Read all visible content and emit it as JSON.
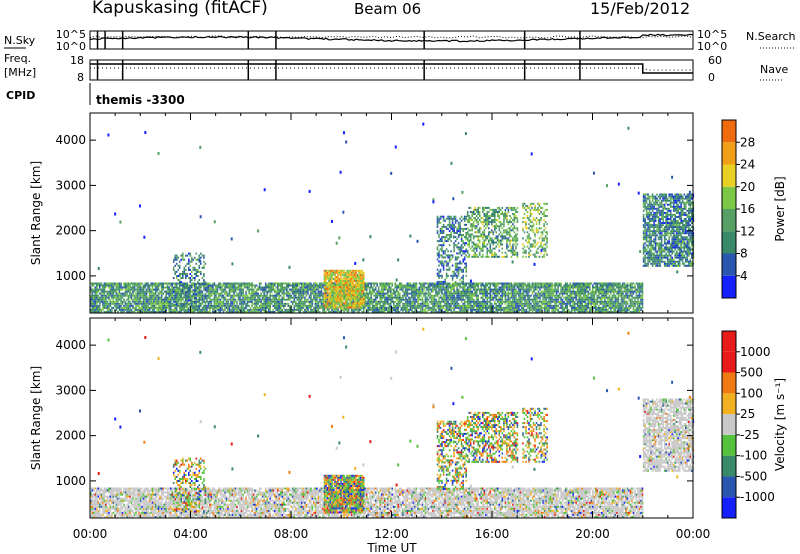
{
  "header": {
    "station": "Kapuskasing (fitACF)",
    "beam": "Beam 06",
    "date": "15/Feb/2012"
  },
  "panels": {
    "nsky_label": "N.Sky",
    "nsky_ticks": [
      "10^5",
      "10^0"
    ],
    "nsearch_ticks": [
      "10^5",
      "10^0"
    ],
    "nsearch_label": "N.Search",
    "freq_label": "Freq.",
    "freq_unit": "[MHz]",
    "freq_ticks": [
      "18",
      "8"
    ],
    "nave_ticks": [
      "60",
      "0"
    ],
    "nave_label": "Nave",
    "cpid_label": "CPID",
    "cpid_value": "themis -3300"
  },
  "axes": {
    "ylabel": "Slant Range [km]",
    "xlabel": "Time UT",
    "y_ticks": [
      "1000",
      "2000",
      "3000",
      "4000"
    ],
    "x_ticks": [
      "00:00",
      "04:00",
      "08:00",
      "12:00",
      "16:00",
      "20:00",
      "00:00"
    ]
  },
  "colorbars": {
    "power": {
      "label": "Power [dB]",
      "ticks": [
        "4",
        "8",
        "12",
        "16",
        "20",
        "24",
        "28"
      ]
    },
    "velocity": {
      "label": "Velocity [m s⁻¹]",
      "ticks": [
        "1000",
        "500",
        "100",
        "25",
        "-25",
        "-100",
        "-500",
        "-1000"
      ]
    }
  },
  "colors": {
    "power_scale": [
      "#1420ff",
      "#2a56b0",
      "#3a8a6a",
      "#56a066",
      "#7cc846",
      "#e8d024",
      "#f0a016",
      "#f06a0e",
      "#e81a1a"
    ],
    "velocity_scale": [
      "#1420ff",
      "#2a56b0",
      "#3a8a6a",
      "#56c23c",
      "#c8c8c8",
      "#f0b020",
      "#f07a12",
      "#e81a1a"
    ],
    "ground_scatter": "#c8c8c8"
  },
  "chart_data": {
    "type": "heatmap",
    "x_range_hours": [
      0,
      24
    ],
    "y_range_km": [
      180,
      4600
    ],
    "panels": [
      "power",
      "velocity"
    ],
    "scatter_regions": [
      {
        "t0": 0.0,
        "t1": 22.0,
        "r0": 180,
        "r1": 850,
        "density": 0.85,
        "power_mean": 10,
        "kind": "near"
      },
      {
        "t0": 9.3,
        "t1": 10.9,
        "r0": 280,
        "r1": 1100,
        "density": 0.9,
        "power_mean": 20,
        "kind": "bright"
      },
      {
        "t0": 3.3,
        "t1": 4.6,
        "r0": 300,
        "r1": 1500,
        "density": 0.35,
        "power_mean": 8,
        "kind": "patch"
      },
      {
        "t0": 13.8,
        "t1": 15.0,
        "r0": 800,
        "r1": 2300,
        "density": 0.5,
        "power_mean": 8,
        "kind": "patch"
      },
      {
        "t0": 15.0,
        "t1": 17.0,
        "r0": 1400,
        "r1": 2500,
        "density": 0.55,
        "power_mean": 12,
        "kind": "patch"
      },
      {
        "t0": 17.2,
        "t1": 18.2,
        "r0": 1400,
        "r1": 2600,
        "density": 0.45,
        "power_mean": 14,
        "kind": "patch"
      },
      {
        "t0": 22.0,
        "t1": 24.0,
        "r0": 1200,
        "r1": 2800,
        "density": 0.8,
        "power_mean": 8,
        "kind": "patch"
      }
    ]
  }
}
